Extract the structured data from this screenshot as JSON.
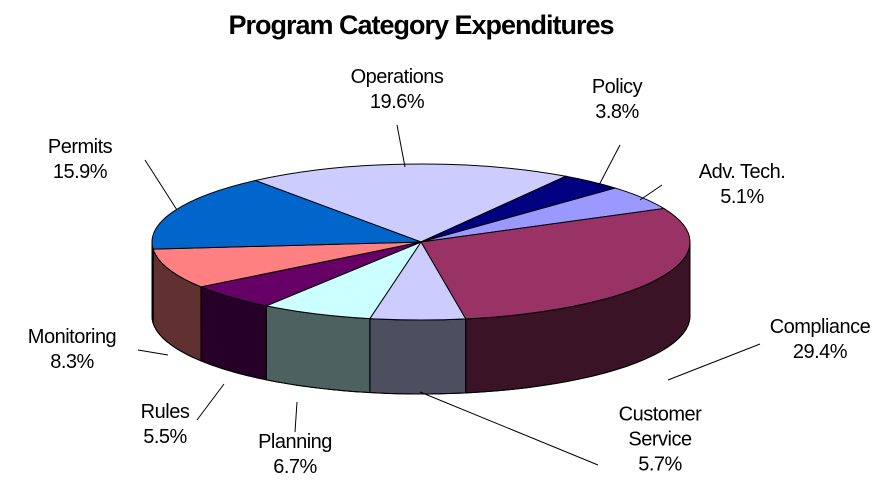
{
  "chart_data": {
    "type": "pie",
    "title": "Program Category Expenditures",
    "categories": [
      "Operations",
      "Policy",
      "Adv. Tech.",
      "Compliance",
      "Customer Service",
      "Planning",
      "Rules",
      "Monitoring",
      "Permits"
    ],
    "values": [
      19.6,
      3.8,
      5.1,
      29.4,
      5.7,
      6.7,
      5.5,
      8.3,
      15.9
    ],
    "value_labels": [
      "19.6%",
      "3.8%",
      "5.1%",
      "29.4%",
      "5.7%",
      "6.7%",
      "5.5%",
      "8.3%",
      "15.9%"
    ],
    "colors": [
      "#ccccff",
      "#000080",
      "#9999ff",
      "#993366",
      "#ccccff",
      "#ccffff",
      "#660066",
      "#ff8080",
      "#0066cc"
    ]
  }
}
